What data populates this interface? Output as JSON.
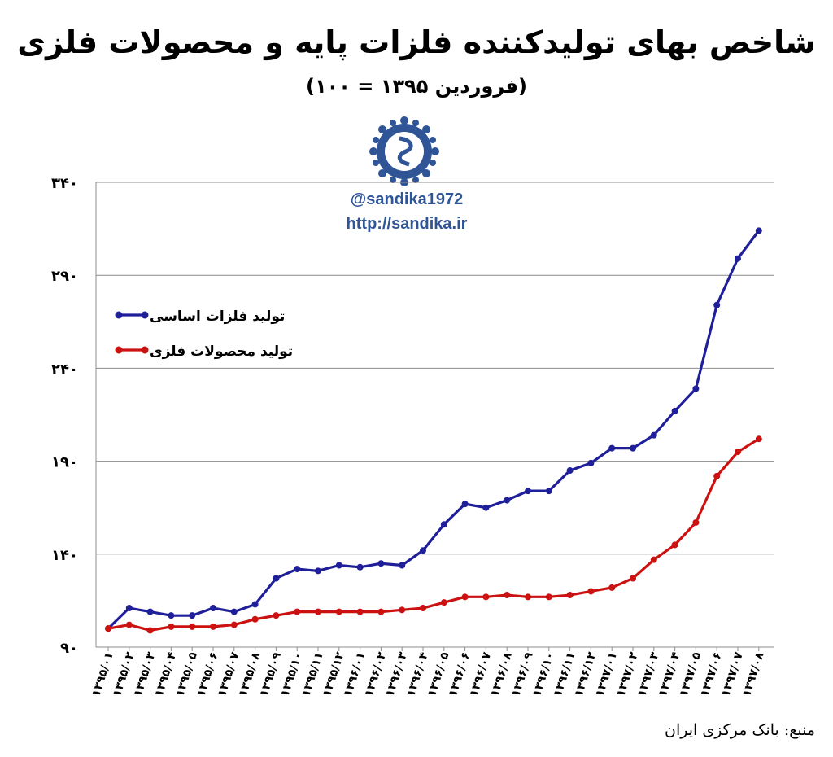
{
  "header": {
    "title": "شاخص بهای تولیدکننده فلزات پایه و محصولات فلزی",
    "subtitle": "(فروردین ۱۳۹۵ = ۱۰۰)"
  },
  "watermark": {
    "handle": "@sandika1972",
    "url": "http://sandika.ir",
    "color": "#2f5597"
  },
  "logo": {
    "icon": "sandika-logo-icon",
    "color": "#2f5597"
  },
  "source_note": "منبع: بانک مرکزی ایران",
  "chart_data": {
    "type": "line",
    "ylim": [
      90,
      340
    ],
    "yticks": [
      90,
      140,
      190,
      240,
      290,
      340
    ],
    "ytick_labels": [
      "۹۰",
      "۱۴۰",
      "۱۹۰",
      "۲۴۰",
      "۲۹۰",
      "۳۴۰"
    ],
    "grid": true,
    "legend_position": "upper-left",
    "categories": [
      "۱۳۹۵/۰۱",
      "۱۳۹۵/۰۲",
      "۱۳۹۵/۰۳",
      "۱۳۹۵/۰۴",
      "۱۳۹۵/۰۵",
      "۱۳۹۵/۰۶",
      "۱۳۹۵/۰۷",
      "۱۳۹۵/۰۸",
      "۱۳۹۵/۰۹",
      "۱۳۹۵/۱۰",
      "۱۳۹۵/۱۱",
      "۱۳۹۵/۱۲",
      "۱۳۹۶/۰۱",
      "۱۳۹۶/۰۲",
      "۱۳۹۶/۰۳",
      "۱۳۹۶/۰۴",
      "۱۳۹۶/۰۵",
      "۱۳۹۶/۰۶",
      "۱۳۹۶/۰۷",
      "۱۳۹۶/۰۸",
      "۱۳۹۶/۰۹",
      "۱۳۹۶/۱۰",
      "۱۳۹۶/۱۱",
      "۱۳۹۶/۱۲",
      "۱۳۹۷/۰۱",
      "۱۳۹۷/۰۲",
      "۱۳۹۷/۰۳",
      "۱۳۹۷/۰۴",
      "۱۳۹۷/۰۵",
      "۱۳۹۷/۰۶",
      "۱۳۹۷/۰۷",
      "۱۳۹۷/۰۸"
    ],
    "series": [
      {
        "name": "تولید فلزات اساسی",
        "color": "#1f1f9a",
        "values": [
          100,
          111,
          109,
          107,
          107,
          111,
          109,
          113,
          127,
          132,
          131,
          134,
          133,
          135,
          134,
          142,
          156,
          167,
          165,
          169,
          174,
          174,
          185,
          189,
          197,
          197,
          204,
          217,
          229,
          274,
          299,
          314
        ]
      },
      {
        "name": "تولید محصولات فلزی",
        "color": "#cc1111",
        "values": [
          100,
          102,
          99,
          101,
          101,
          101,
          102,
          105,
          107,
          109,
          109,
          109,
          109,
          109,
          110,
          111,
          114,
          117,
          117,
          118,
          117,
          117,
          118,
          120,
          122,
          127,
          137,
          145,
          157,
          182,
          195,
          202
        ]
      }
    ]
  }
}
